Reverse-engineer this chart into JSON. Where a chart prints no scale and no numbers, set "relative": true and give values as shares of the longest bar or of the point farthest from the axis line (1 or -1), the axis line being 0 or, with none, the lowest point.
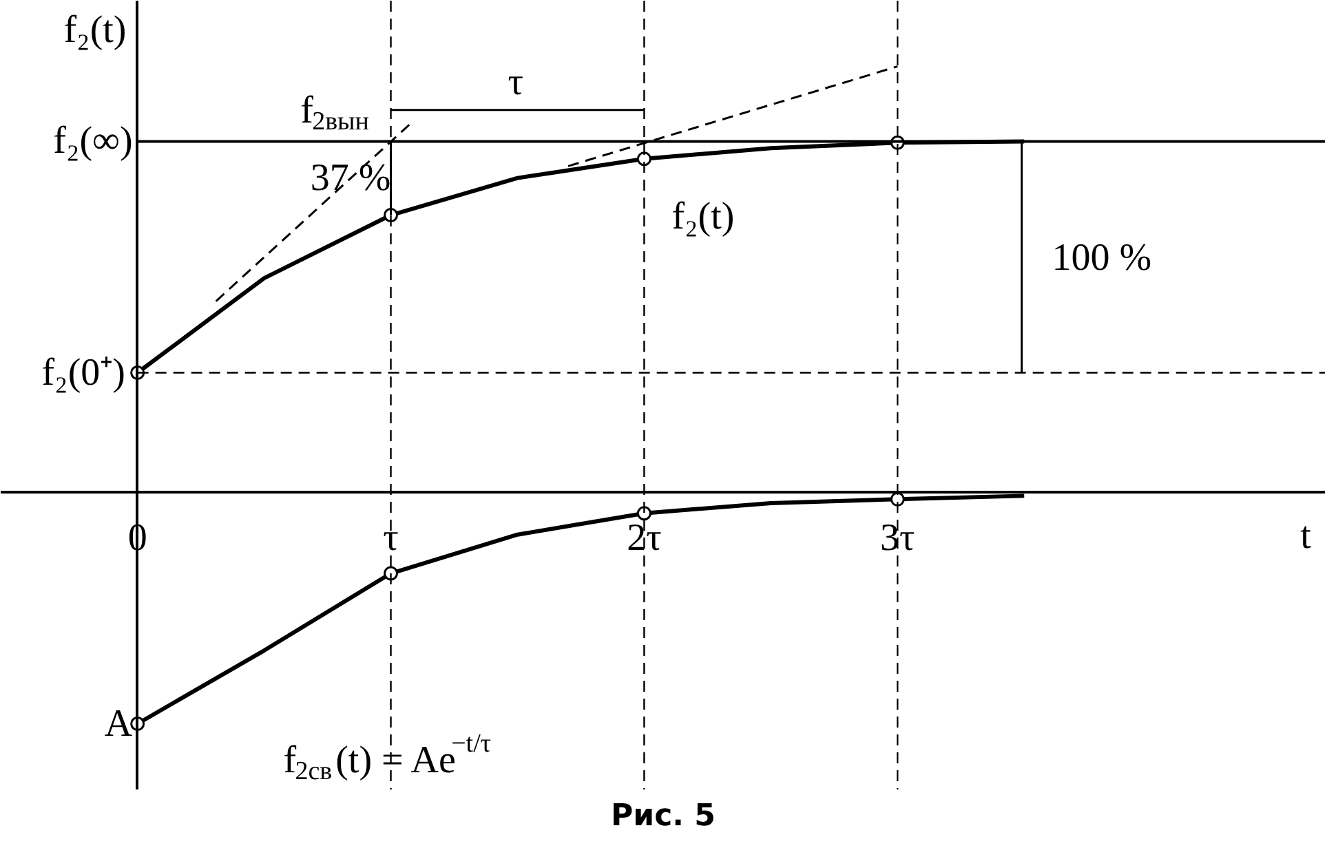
{
  "chart_data": {
    "type": "line",
    "relative": true,
    "xlabel": "t",
    "ylabel": "f₂(t)",
    "xlim": [
      -0.54,
      4.69
    ],
    "xticks": [
      {
        "value": 0,
        "label": "0"
      },
      {
        "value": 1,
        "label": "τ"
      },
      {
        "value": 2,
        "label": "2τ"
      },
      {
        "value": 3,
        "label": "3τ"
      }
    ],
    "grid": false,
    "series": [
      {
        "color": "#000000",
        "x": [
          0,
          0.5,
          1,
          1.5,
          2,
          2.5,
          3,
          3.5
        ],
        "values": [
          0.281,
          0.503,
          0.651,
          0.738,
          0.783,
          0.808,
          0.821,
          0.824
        ],
        "line_style": "solid",
        "marker": "none"
      },
      {
        "color": "#000000",
        "x": [
          0,
          0.5,
          1,
          1.5,
          2,
          2.5,
          3,
          3.5
        ],
        "values": [
          -0.543,
          -0.371,
          -0.19,
          -0.099,
          -0.049,
          -0.025,
          -0.016,
          -0.008
        ],
        "line_style": "solid",
        "marker": "none"
      },
      {
        "type": "scatter",
        "color": "#000000",
        "x": [
          0,
          1,
          2,
          3
        ],
        "values": [
          0.281,
          0.651,
          0.783,
          0.821
        ],
        "marker": "circle"
      },
      {
        "type": "scatter",
        "color": "#000000",
        "x": [
          0,
          1,
          2,
          3
        ],
        "values": [
          -0.543,
          -0.19,
          -0.049,
          -0.016
        ],
        "marker": "circle"
      },
      {
        "color": "#000000",
        "x": [
          0.31,
          1.08
        ],
        "values": [
          0.449,
          0.867
        ],
        "line_style": "dashed",
        "marker": "none"
      },
      {
        "color": "#000000",
        "x": [
          1.7,
          3.0
        ],
        "values": [
          0.766,
          1.0
        ],
        "line_style": "dashed",
        "marker": "none"
      },
      {
        "color": "#000000",
        "x": [
          1,
          1
        ],
        "values": [
          0.824,
          0.651
        ],
        "line_style": "solid",
        "marker": "none"
      },
      {
        "color": "#000000",
        "x": [
          1,
          2
        ],
        "values": [
          0.898,
          0.898
        ],
        "line_style": "solid",
        "marker": "none"
      },
      {
        "color": "#000000",
        "x": [
          3.49,
          3.49
        ],
        "values": [
          0.824,
          0.281
        ],
        "line_style": "solid",
        "marker": "none"
      }
    ],
    "ref_lines": [
      {
        "axis": "y",
        "value": 0.824,
        "line_style": "solid"
      },
      {
        "axis": "y",
        "value": 0.281,
        "line_style": "dashed"
      },
      {
        "axis": "x",
        "value": 1,
        "line_style": "dashed"
      },
      {
        "axis": "x",
        "value": 2,
        "line_style": "dashed"
      },
      {
        "axis": "x",
        "value": 3,
        "line_style": "dashed"
      }
    ],
    "annotations": [
      {
        "text": "f₂(∞)",
        "x": 0,
        "y": 0.824
      },
      {
        "text": "f₂(0⁺)",
        "x": 0,
        "y": 0.281
      },
      {
        "text": "A",
        "x": 0,
        "y": -0.543
      },
      {
        "text": "f$_{2вын}$",
        "x": 1,
        "y": 0.824
      },
      {
        "text": "τ",
        "x": 1.5,
        "y": 0.898
      },
      {
        "text": "37 %",
        "x": 1,
        "y": 0.737
      },
      {
        "text": "f₂(t)",
        "x": 2,
        "y": 0.783
      },
      {
        "text": "100 %",
        "x": 3.49,
        "y": 0.55
      },
      {
        "text": "f$_{2св}$(t) = Ae$^{−t/τ}$",
        "x": 0.5,
        "y": -0.371
      },
      "Рис. 5"
    ]
  }
}
